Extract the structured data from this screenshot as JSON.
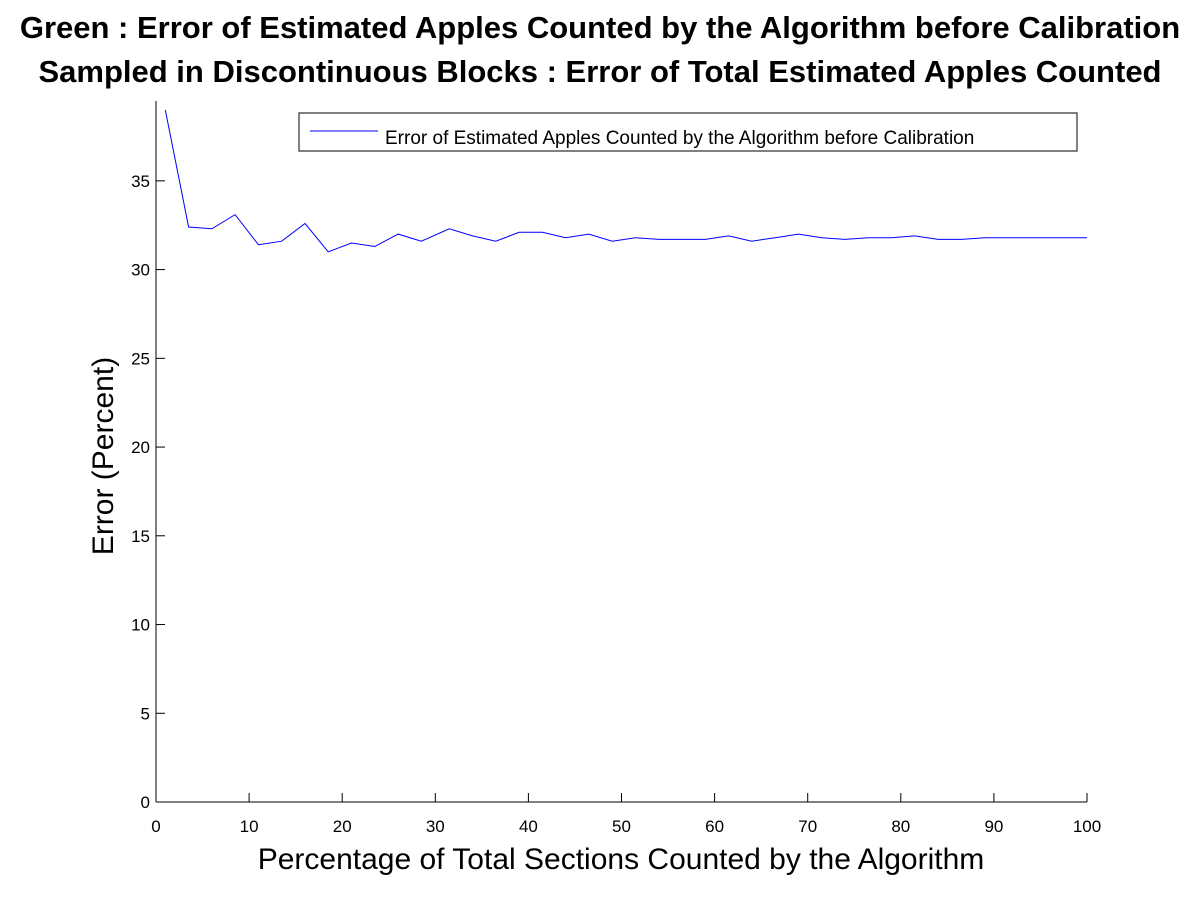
{
  "title_lines": [
    "Green : Error of Estimated Apples Counted by the Algorithm before Calibration",
    "Sampled in Discontinuous Blocks : Error of Total Estimated Apples Counted"
  ],
  "chart_data": {
    "type": "line",
    "title": "Green : Error of Estimated Apples Counted by the Algorithm before Calibration / Sampled in Discontinuous Blocks : Error of Total Estimated Apples Counted",
    "xlabel": "Percentage of Total Sections Counted by the Algorithm",
    "ylabel": "Error (Percent)",
    "xlim": [
      0,
      100
    ],
    "ylim": [
      0,
      39.5
    ],
    "xticks": [
      0,
      10,
      20,
      30,
      40,
      50,
      60,
      70,
      80,
      90,
      100
    ],
    "yticks": [
      0,
      5,
      10,
      15,
      20,
      25,
      30,
      35
    ],
    "grid": false,
    "legend_position": "top-right",
    "series": [
      {
        "name": "Error of Estimated Apples Counted by the Algorithm before Calibration",
        "color": "#0000ff",
        "x": [
          1,
          3.5,
          6,
          8.5,
          11,
          13.5,
          16,
          18.5,
          21,
          23.5,
          26,
          28.5,
          31.5,
          34,
          36.5,
          39,
          41.5,
          44,
          46.5,
          49,
          51.5,
          54,
          56.5,
          59,
          61.5,
          64,
          66.5,
          69,
          71.5,
          74,
          76.5,
          79,
          81.5,
          84,
          86.5,
          89,
          91.5,
          94,
          96.5,
          100
        ],
        "y": [
          39.0,
          32.4,
          32.3,
          33.1,
          31.4,
          31.6,
          32.6,
          31.0,
          31.5,
          31.3,
          32.0,
          31.6,
          32.3,
          31.9,
          31.6,
          32.1,
          32.1,
          31.8,
          32.0,
          31.6,
          31.8,
          31.7,
          31.7,
          31.7,
          31.9,
          31.6,
          31.8,
          32.0,
          31.8,
          31.7,
          31.8,
          31.8,
          31.9,
          31.7,
          31.7,
          31.8,
          31.8,
          31.8,
          31.8,
          31.8
        ]
      }
    ]
  }
}
